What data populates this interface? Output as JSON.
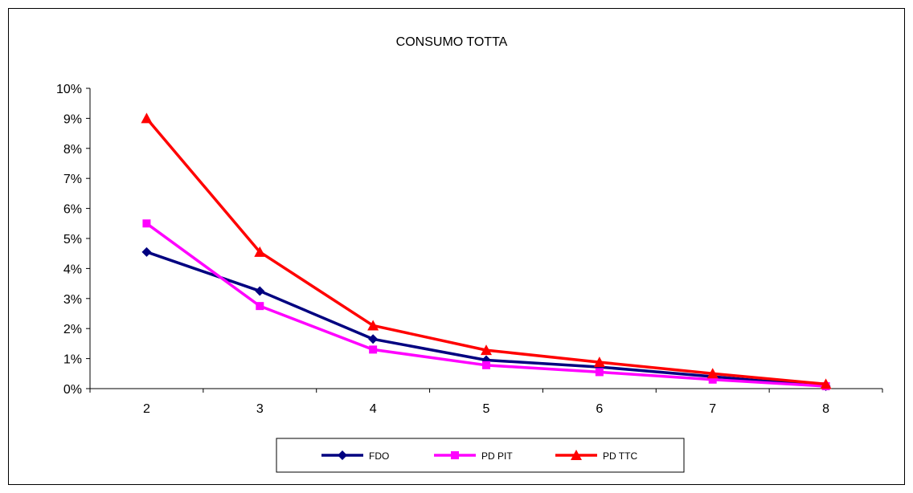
{
  "chart_data": {
    "type": "line",
    "title": "CONSUMO TOTTA",
    "xlabel": "",
    "ylabel": "",
    "x": [
      2,
      3,
      4,
      5,
      6,
      7,
      8
    ],
    "x_tick_labels": [
      "2",
      "3",
      "4",
      "5",
      "6",
      "7",
      "8"
    ],
    "ylim": [
      0,
      10
    ],
    "y_tick_labels": [
      "0%",
      "1%",
      "2%",
      "3%",
      "4%",
      "5%",
      "6%",
      "7%",
      "8%",
      "9%",
      "10%"
    ],
    "y_unit": "%",
    "grid": false,
    "legend_position": "bottom",
    "series": [
      {
        "name": "FDO",
        "values": [
          4.55,
          3.25,
          1.65,
          0.95,
          0.72,
          0.4,
          0.08
        ],
        "color": "#000080",
        "marker": "diamond"
      },
      {
        "name": "PD PIT",
        "values": [
          5.5,
          2.75,
          1.3,
          0.78,
          0.55,
          0.3,
          0.08
        ],
        "color": "#FF00FF",
        "marker": "square"
      },
      {
        "name": "PD TTC",
        "values": [
          9.0,
          4.55,
          2.1,
          1.28,
          0.88,
          0.5,
          0.15
        ],
        "color": "#FF0000",
        "marker": "triangle"
      }
    ]
  }
}
